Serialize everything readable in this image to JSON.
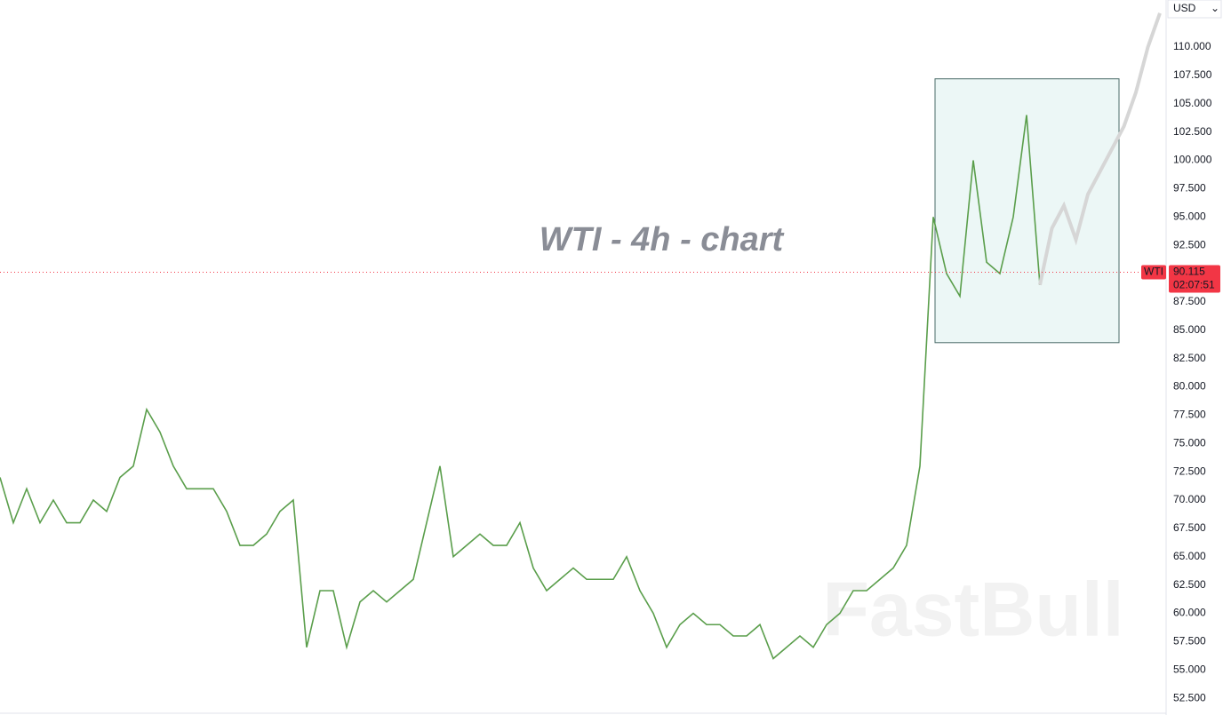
{
  "chart_data": {
    "type": "line",
    "title": "WTI - 4h - chart",
    "watermark": "FastBull",
    "currency": "USD",
    "symbol": "WTI",
    "last_price": 90.115,
    "countdown": "02:07:51",
    "ylim": [
      51.02,
      114.16
    ],
    "yticks": [
      {
        "value": 52.5,
        "label": "52.500"
      },
      {
        "value": 55,
        "label": "55.000"
      },
      {
        "value": 57.5,
        "label": "57.500"
      },
      {
        "value": 60,
        "label": "60.000"
      },
      {
        "value": 62.5,
        "label": "62.500"
      },
      {
        "value": 65,
        "label": "65.000"
      },
      {
        "value": 67.5,
        "label": "67.500"
      },
      {
        "value": 70,
        "label": "70.000"
      },
      {
        "value": 72.5,
        "label": "72.500"
      },
      {
        "value": 75,
        "label": "75.000"
      },
      {
        "value": 77.5,
        "label": "77.500"
      },
      {
        "value": 80,
        "label": "80.000"
      },
      {
        "value": 82.5,
        "label": "82.500"
      },
      {
        "value": 85,
        "label": "85.000"
      },
      {
        "value": 87.5,
        "label": "87.500"
      },
      {
        "value": 90,
        "label": "90.000"
      },
      {
        "value": 92.5,
        "label": "92.500"
      },
      {
        "value": 95,
        "label": "95.000"
      },
      {
        "value": 97.5,
        "label": "97.500"
      },
      {
        "value": 100,
        "label": "100.000"
      },
      {
        "value": 102.5,
        "label": "102.500"
      },
      {
        "value": 105,
        "label": "105.000"
      },
      {
        "value": 107.5,
        "label": "107.500"
      },
      {
        "value": 110,
        "label": "110.000"
      }
    ],
    "box": {
      "top": 107.2,
      "bottom": 83.9
    },
    "series": [
      {
        "color": "#5a9e4b",
        "values": [
          72,
          68,
          71,
          68,
          70,
          68,
          68,
          70,
          69,
          72,
          73,
          78,
          76,
          73,
          71,
          71,
          71,
          69,
          66,
          66,
          67,
          69,
          70,
          57,
          62,
          62,
          57,
          61,
          62,
          61,
          62,
          63,
          68,
          73,
          65,
          66,
          67,
          66,
          66,
          68,
          64,
          62,
          63,
          64,
          63,
          63,
          63,
          65,
          62,
          60,
          57,
          59,
          60,
          59,
          59,
          58,
          58,
          59,
          56,
          57,
          58,
          57,
          59,
          60,
          62,
          62,
          63,
          64,
          66,
          73,
          95,
          90,
          88,
          100,
          91,
          90,
          95,
          104,
          89
        ]
      },
      {
        "color": "#d6d6d6",
        "values": [
          89,
          94,
          96,
          93,
          97,
          99,
          101,
          103,
          106,
          110,
          113
        ]
      }
    ]
  }
}
